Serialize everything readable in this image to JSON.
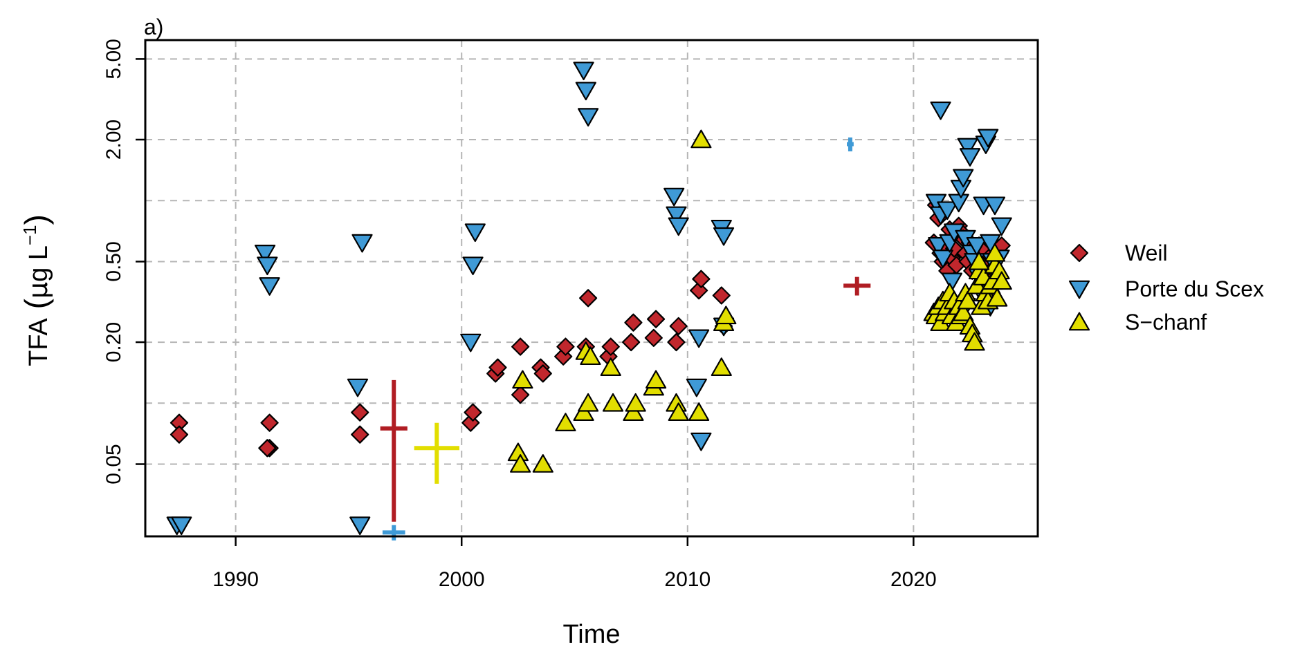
{
  "chart_data": {
    "type": "scatter",
    "panel_label": "a)",
    "title": "",
    "xlabel": "Time",
    "ylabel_main": "TFA",
    "ylabel_unit_mu": "μ",
    "ylabel_unit_g": "g L",
    "ylabel_unit_exp": "−1",
    "xlim": [
      1986,
      2025.5
    ],
    "ylim": [
      0.022,
      6.2
    ],
    "y_scale": "log",
    "x_ticks": [
      1990,
      2000,
      2010,
      2020
    ],
    "x_tick_labels": [
      "1990",
      "2000",
      "2010",
      "2020"
    ],
    "y_ticks": [
      0.05,
      0.2,
      0.5,
      2.0,
      5.0
    ],
    "y_tick_labels": [
      "0.05",
      "0.20",
      "0.50",
      "2.00",
      "5.00"
    ],
    "y_minor_grid": [
      0.1,
      1.0
    ],
    "grid": true,
    "legend_position": "right",
    "series": [
      {
        "name": "Weil",
        "marker": "diamond",
        "color": "#c1272d",
        "points": [
          [
            1987.5,
            0.08
          ],
          [
            1987.5,
            0.07
          ],
          [
            1991.5,
            0.08
          ],
          [
            1991.5,
            0.06
          ],
          [
            1991.4,
            0.06
          ],
          [
            1995.5,
            0.09
          ],
          [
            1995.5,
            0.07
          ],
          [
            2000.4,
            0.08
          ],
          [
            2000.5,
            0.09
          ],
          [
            2001.5,
            0.14
          ],
          [
            2001.6,
            0.15
          ],
          [
            2002.6,
            0.19
          ],
          [
            2002.6,
            0.11
          ],
          [
            2003.5,
            0.15
          ],
          [
            2003.6,
            0.14
          ],
          [
            2004.5,
            0.17
          ],
          [
            2004.6,
            0.19
          ],
          [
            2005.5,
            0.19
          ],
          [
            2005.6,
            0.33
          ],
          [
            2006.5,
            0.17
          ],
          [
            2006.6,
            0.19
          ],
          [
            2007.5,
            0.2
          ],
          [
            2007.6,
            0.25
          ],
          [
            2008.5,
            0.21
          ],
          [
            2008.6,
            0.26
          ],
          [
            2009.5,
            0.2
          ],
          [
            2009.6,
            0.24
          ],
          [
            2010.5,
            0.36
          ],
          [
            2010.6,
            0.41
          ],
          [
            2011.5,
            0.34
          ],
          [
            2011.6,
            0.24
          ],
          [
            2020.9,
            0.62
          ],
          [
            2021.0,
            0.95
          ],
          [
            2021.1,
            0.82
          ],
          [
            2021.2,
            0.55
          ],
          [
            2021.3,
            0.5
          ],
          [
            2021.4,
            0.6
          ],
          [
            2021.5,
            0.45
          ],
          [
            2021.6,
            0.72
          ],
          [
            2021.7,
            0.52
          ],
          [
            2021.8,
            0.58
          ],
          [
            2021.9,
            0.48
          ],
          [
            2022.0,
            0.75
          ],
          [
            2022.1,
            0.7
          ],
          [
            2022.2,
            0.65
          ],
          [
            2022.3,
            0.55
          ],
          [
            2022.4,
            0.5
          ],
          [
            2022.5,
            0.62
          ],
          [
            2022.6,
            0.45
          ],
          [
            2022.7,
            0.58
          ],
          [
            2022.8,
            0.52
          ],
          [
            2022.9,
            0.6
          ],
          [
            2023.0,
            0.48
          ],
          [
            2023.1,
            0.56
          ],
          [
            2023.2,
            0.44
          ],
          [
            2023.3,
            0.5
          ],
          [
            2023.4,
            0.53
          ],
          [
            2023.5,
            0.46
          ],
          [
            2023.6,
            0.42
          ],
          [
            2023.8,
            0.55
          ],
          [
            2023.9,
            0.6
          ]
        ]
      },
      {
        "name": "Porte du Scex",
        "marker": "triangle-down",
        "color": "#3f9ad6",
        "points": [
          [
            1987.4,
            0.025
          ],
          [
            1987.6,
            0.025
          ],
          [
            1991.3,
            0.55
          ],
          [
            1991.4,
            0.48
          ],
          [
            1991.5,
            0.38
          ],
          [
            1995.5,
            0.025
          ],
          [
            1995.4,
            0.12
          ],
          [
            1995.6,
            0.62
          ],
          [
            2000.4,
            0.2
          ],
          [
            2000.5,
            0.48
          ],
          [
            2000.6,
            0.7
          ],
          [
            2005.4,
            4.4
          ],
          [
            2005.5,
            3.5
          ],
          [
            2005.6,
            2.6
          ],
          [
            2009.4,
            1.05
          ],
          [
            2009.5,
            0.85
          ],
          [
            2009.6,
            0.75
          ],
          [
            2010.4,
            0.12
          ],
          [
            2010.5,
            0.21
          ],
          [
            2010.6,
            0.065
          ],
          [
            2011.5,
            0.73
          ],
          [
            2011.6,
            0.67
          ],
          [
            2011.6,
            0.24
          ],
          [
            2021.0,
            0.98
          ],
          [
            2021.1,
            0.6
          ],
          [
            2021.2,
            0.85
          ],
          [
            2021.3,
            0.52
          ],
          [
            2021.5,
            0.9
          ],
          [
            2021.6,
            0.62
          ],
          [
            2021.7,
            0.4
          ],
          [
            2021.8,
            0.7
          ],
          [
            2022.0,
            0.98
          ],
          [
            2022.1,
            1.15
          ],
          [
            2022.2,
            1.3
          ],
          [
            2022.3,
            0.65
          ],
          [
            2022.4,
            1.85
          ],
          [
            2022.5,
            1.65
          ],
          [
            2022.6,
            0.55
          ],
          [
            2022.7,
            0.5
          ],
          [
            2022.8,
            0.6
          ],
          [
            2022.9,
            0.42
          ],
          [
            2023.0,
            0.35
          ],
          [
            2023.1,
            0.95
          ],
          [
            2023.2,
            1.9
          ],
          [
            2023.3,
            2.05
          ],
          [
            2023.4,
            0.3
          ],
          [
            2023.5,
            0.5
          ],
          [
            2023.6,
            0.95
          ],
          [
            2023.8,
            0.52
          ],
          [
            2023.9,
            0.75
          ],
          [
            2023.4,
            0.62
          ],
          [
            2021.2,
            2.8
          ],
          [
            2022.3,
            0.3
          ]
        ]
      },
      {
        "name": "S−chanf",
        "marker": "triangle-up",
        "color": "#e2de00",
        "points": [
          [
            2002.5,
            0.057
          ],
          [
            2002.6,
            0.05
          ],
          [
            2002.7,
            0.13
          ],
          [
            2003.6,
            0.05
          ],
          [
            2004.6,
            0.08
          ],
          [
            2005.4,
            0.09
          ],
          [
            2005.5,
            0.18
          ],
          [
            2005.6,
            0.1
          ],
          [
            2005.7,
            0.17
          ],
          [
            2006.6,
            0.15
          ],
          [
            2006.7,
            0.1
          ],
          [
            2007.6,
            0.09
          ],
          [
            2007.7,
            0.1
          ],
          [
            2008.5,
            0.12
          ],
          [
            2008.6,
            0.13
          ],
          [
            2009.5,
            0.1
          ],
          [
            2009.6,
            0.09
          ],
          [
            2010.5,
            0.09
          ],
          [
            2010.6,
            2.0
          ],
          [
            2011.5,
            0.15
          ],
          [
            2011.6,
            0.25
          ],
          [
            2011.7,
            0.27
          ],
          [
            2020.9,
            0.28
          ],
          [
            2021.0,
            0.27
          ],
          [
            2021.1,
            0.3
          ],
          [
            2021.2,
            0.25
          ],
          [
            2021.3,
            0.32
          ],
          [
            2021.4,
            0.28
          ],
          [
            2021.5,
            0.3
          ],
          [
            2021.6,
            0.35
          ],
          [
            2021.7,
            0.27
          ],
          [
            2021.8,
            0.32
          ],
          [
            2021.9,
            0.25
          ],
          [
            2022.0,
            0.3
          ],
          [
            2022.1,
            0.27
          ],
          [
            2022.2,
            0.28
          ],
          [
            2022.3,
            0.35
          ],
          [
            2022.4,
            0.32
          ],
          [
            2022.5,
            0.24
          ],
          [
            2022.6,
            0.22
          ],
          [
            2022.7,
            0.2
          ],
          [
            2022.8,
            0.38
          ],
          [
            2022.9,
            0.45
          ],
          [
            2023.0,
            0.3
          ],
          [
            2023.1,
            0.42
          ],
          [
            2023.2,
            0.35
          ],
          [
            2023.3,
            0.32
          ],
          [
            2023.4,
            0.38
          ],
          [
            2023.5,
            0.4
          ],
          [
            2023.6,
            0.48
          ],
          [
            2023.7,
            0.33
          ],
          [
            2023.8,
            0.45
          ],
          [
            2023.9,
            0.4
          ],
          [
            2022.9,
            0.5
          ],
          [
            2023.6,
            0.55
          ]
        ]
      }
    ],
    "crosses": [
      {
        "color": "#b01d23",
        "x": 1997.0,
        "x_err": 0.6,
        "y": 0.075,
        "y_low": 0.026,
        "y_high": 0.13
      },
      {
        "color": "#3f9ad6",
        "x": 1997.0,
        "x_err": 0.5,
        "y": 0.023,
        "y_low": 0.021,
        "y_high": 0.025
      },
      {
        "color": "#e2de00",
        "x": 1998.9,
        "x_err": 1.0,
        "y": 0.06,
        "y_low": 0.04,
        "y_high": 0.08
      },
      {
        "color": "#b01d23",
        "x": 2017.5,
        "x_err": 0.6,
        "y": 0.38,
        "y_low": 0.34,
        "y_high": 0.42
      },
      {
        "color": "#3f9ad6",
        "x": 2017.2,
        "x_err": 0.15,
        "y": 1.9,
        "y_low": 1.75,
        "y_high": 2.05
      }
    ]
  }
}
